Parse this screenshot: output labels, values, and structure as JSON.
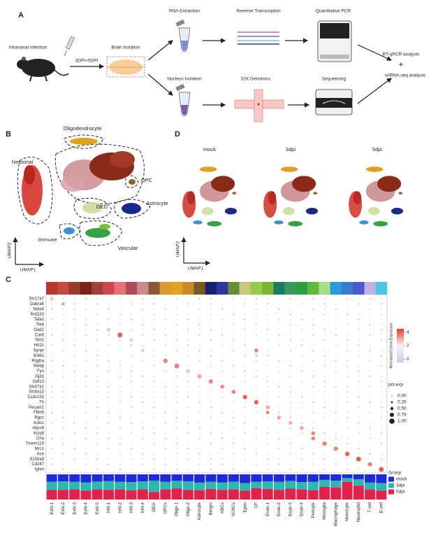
{
  "panel_a": {
    "label": "A",
    "infection": "Intranasal Infection",
    "timepoints": "3DPI+5DPI",
    "brain": "Brain Isolation",
    "rna": "RNA Extraction",
    "rt": "Reverse Transcription",
    "qpcr": "Quantitative PCR",
    "nucleus": "Nucleus Isolation",
    "genomics": "10X Genomics",
    "sequencing": "Sequencing",
    "rt_qpcr_analysis": "RT-qPCR analysis",
    "plus": "+",
    "snrna_analysis": "snRNA-seq analysis"
  },
  "panel_b": {
    "label": "B",
    "clusters": [
      "Oligodendrocyte",
      "Neuronal",
      "OPC",
      "OEG",
      "Astrocyte",
      "Immune",
      "Vascular"
    ],
    "x_axis": "UMAP1",
    "y_axis": "UMAP2"
  },
  "panel_d": {
    "label": "D",
    "conditions": [
      "mock",
      "3dpi",
      "5dpi"
    ],
    "x_axis": "UMAP1",
    "y_axis": "UMAP2"
  },
  "panel_c": {
    "label": "C",
    "genes": [
      "Slc17a7",
      "Gabra6",
      "Ndst4",
      "Rnf220",
      "Tafa1",
      "Tle4",
      "Gad2",
      "Car8",
      "Ntn1",
      "Htr2c",
      "Synpr",
      "Sntb1",
      "Pdgfra",
      "Mobp",
      "Fyn",
      "Gja1",
      "Gdf10",
      "Slc47a1",
      "Slc6a13",
      "Ccdc153",
      "Th",
      "Pecam1",
      "Fbln5",
      "Rgcc",
      "Ackr1",
      "Abcc9",
      "Kcnj8",
      "Cha",
      "Tmem119",
      "Mrc1",
      "Ace",
      "S100a9",
      "Cd247",
      "Ighm"
    ],
    "cell_types": [
      "ExN-1",
      "ExN-2",
      "ExN-3",
      "ExN-4",
      "ExN-5",
      "InN-1",
      "InN-2",
      "InN-3",
      "InN-4",
      "OEG",
      "OPCs",
      "Oligo-1",
      "Oligo-2",
      "Astrocyte",
      "Bergm",
      "ABCs",
      "VLMCs",
      "Epen",
      "CP",
      "Endo-1",
      "Endo-2",
      "Endo-3",
      "Endo-4",
      "Pericyte",
      "Microglia",
      "Macrophage",
      "Monocyte",
      "Neutrophil",
      "T cell",
      "B cell"
    ],
    "cell_colors": [
      "#b8352c",
      "#c24a3a",
      "#9a3a2a",
      "#7a2418",
      "#a0403a",
      "#d2464e",
      "#e8707a",
      "#b24a58",
      "#c88a90",
      "#8a5a30",
      "#d89a2a",
      "#e8a020",
      "#c88a28",
      "#7a5a24",
      "#18206e",
      "#2a3a9a",
      "#6a8a3a",
      "#c8c87a",
      "#9ac84a",
      "#78b832",
      "#1a7a6a",
      "#3a9a5a",
      "#2aa044",
      "#62b83a",
      "#a8e08a",
      "#2a9ad8",
      "#3a7ad0",
      "#4a5ac8",
      "#c4b0e4",
      "#4ac8e0"
    ],
    "dots": [
      [
        0,
        0,
        2.5,
        0.7
      ],
      [
        1,
        1,
        3,
        0.6
      ],
      [
        2,
        2,
        2,
        0.6
      ],
      [
        3,
        1,
        2,
        0.5
      ],
      [
        4,
        3,
        2,
        0.6
      ],
      [
        5,
        4,
        2,
        0.5
      ],
      [
        6,
        5,
        2.5,
        0.7
      ],
      [
        7,
        6,
        4,
        0.9
      ],
      [
        8,
        7,
        2.5,
        0.6
      ],
      [
        9,
        8,
        2,
        0.5
      ],
      [
        10,
        8,
        2.5,
        0.6
      ],
      [
        11,
        9,
        2,
        0.5
      ],
      [
        12,
        10,
        3.5,
        0.8
      ],
      [
        13,
        11,
        3.5,
        0.9
      ],
      [
        14,
        12,
        2.5,
        0.8
      ],
      [
        15,
        13,
        3,
        0.8
      ],
      [
        16,
        14,
        3.5,
        0.8
      ],
      [
        17,
        15,
        3.5,
        0.7
      ],
      [
        18,
        16,
        3.5,
        0.7
      ],
      [
        19,
        17,
        4,
        0.8
      ],
      [
        20,
        18,
        4,
        0.8
      ],
      [
        21,
        19,
        3,
        0.7
      ],
      [
        22,
        19,
        3.5,
        0.6
      ],
      [
        23,
        20,
        3,
        0.7
      ],
      [
        24,
        21,
        3,
        0.6
      ],
      [
        25,
        22,
        3,
        0.7
      ],
      [
        26,
        23,
        3.5,
        0.7
      ],
      [
        27,
        23,
        3.5,
        0.7
      ],
      [
        28,
        24,
        3.5,
        0.8
      ],
      [
        29,
        25,
        3.5,
        0.8
      ],
      [
        30,
        26,
        4,
        0.8
      ],
      [
        31,
        27,
        4,
        0.9
      ],
      [
        32,
        28,
        3.5,
        0.8
      ],
      [
        33,
        29,
        4,
        0.9
      ],
      [
        3,
        11,
        2,
        0.5
      ],
      [
        10,
        18,
        3.5,
        0.7
      ],
      [
        6,
        7,
        1.5,
        0.4
      ],
      [
        8,
        6,
        1.5,
        0.4
      ],
      [
        11,
        18,
        2.5,
        0.5
      ],
      [
        21,
        20,
        2,
        0.5
      ],
      [
        21,
        21,
        2,
        0.5
      ]
    ],
    "expression_legend": {
      "title": "Normalized Gene Expression",
      "range": [
        -0.5,
        4.5
      ],
      "ticks": [
        0,
        2,
        4
      ],
      "colors": [
        "#d6c8f2",
        "#f6f0f2",
        "#e63c28"
      ]
    },
    "pct_legend": {
      "title": "pct.exp",
      "ticks": [
        {
          "value": 0,
          "label": "0.00"
        },
        {
          "value": 0.25,
          "label": "0.25"
        },
        {
          "value": 0.5,
          "label": "0.50"
        },
        {
          "value": 0.75,
          "label": "0.75"
        },
        {
          "value": 1,
          "label": "1.00"
        }
      ]
    },
    "group_legend": {
      "title": "Group",
      "names": [
        "mock",
        "3dpi",
        "5dpi"
      ],
      "colors": [
        "#1c2ad8",
        "#2eb6b0",
        "#e2224c"
      ]
    },
    "group_fractions": [
      [
        30,
        32,
        38
      ],
      [
        28,
        34,
        38
      ],
      [
        30,
        30,
        40
      ],
      [
        32,
        33,
        35
      ],
      [
        29,
        31,
        40
      ],
      [
        27,
        35,
        38
      ],
      [
        30,
        30,
        40
      ],
      [
        31,
        33,
        36
      ],
      [
        28,
        32,
        40
      ],
      [
        25,
        45,
        30
      ],
      [
        30,
        30,
        40
      ],
      [
        26,
        30,
        44
      ],
      [
        28,
        34,
        38
      ],
      [
        33,
        30,
        37
      ],
      [
        30,
        28,
        42
      ],
      [
        32,
        30,
        38
      ],
      [
        29,
        31,
        40
      ],
      [
        35,
        30,
        35
      ],
      [
        30,
        25,
        45
      ],
      [
        28,
        30,
        42
      ],
      [
        30,
        32,
        38
      ],
      [
        27,
        30,
        43
      ],
      [
        31,
        29,
        40
      ],
      [
        30,
        33,
        37
      ],
      [
        22,
        28,
        50
      ],
      [
        25,
        27,
        48
      ],
      [
        15,
        15,
        70
      ],
      [
        20,
        25,
        55
      ],
      [
        33,
        27,
        40
      ],
      [
        35,
        30,
        35
      ]
    ]
  }
}
